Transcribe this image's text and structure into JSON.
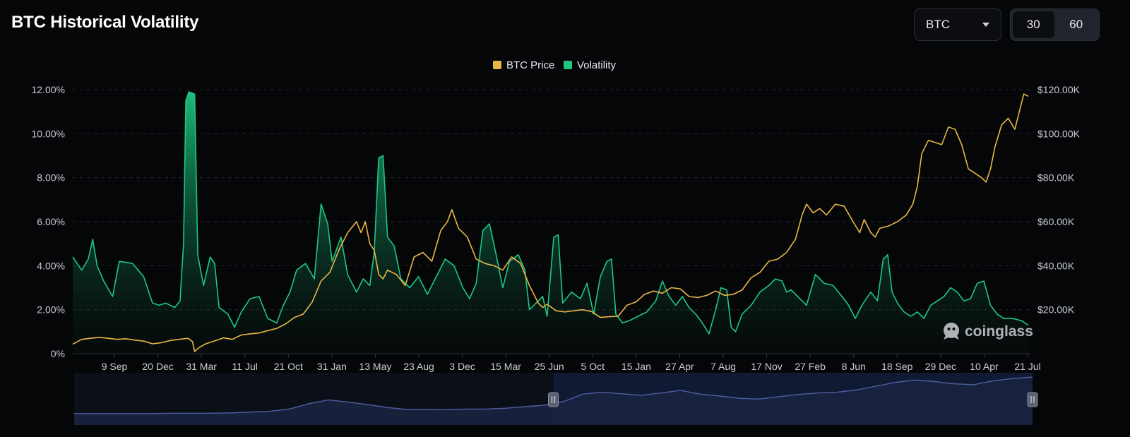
{
  "header": {
    "title": "BTC Historical Volatility"
  },
  "controls": {
    "symbol_select": {
      "value": "BTC",
      "icon": "chevron-down-icon"
    },
    "window_toggle": {
      "options": [
        "30",
        "60"
      ],
      "selected": "30"
    }
  },
  "watermark": {
    "text": "coinglass",
    "icon": "coinglass-logo-icon"
  },
  "colors": {
    "background": "#050608",
    "volatility": "#1fc783",
    "btc_price": "#e8b746",
    "navigator_line": "#4d5fa3",
    "navigator_fill": "#1a2340"
  },
  "chart_data": {
    "type": "line",
    "legend": {
      "position": "top-center",
      "entries": [
        "BTC Price",
        "Volatility"
      ]
    },
    "grid": true,
    "x_tick_labels": [
      "9 Sep",
      "20 Dec",
      "31 Mar",
      "11 Jul",
      "21 Oct",
      "31 Jan",
      "13 May",
      "23 Aug",
      "3 Dec",
      "15 Mar",
      "25 Jun",
      "5 Oct",
      "15 Jan",
      "27 Apr",
      "7 Aug",
      "17 Nov",
      "27 Feb",
      "8 Jun",
      "18 Sep",
      "29 Dec",
      "10 Apr",
      "21 Jul"
    ],
    "y_left": {
      "ticks": [
        "0%",
        "2.00%",
        "4.00%",
        "6.00%",
        "8.00%",
        "10.00%",
        "12.00%"
      ],
      "range": [
        0,
        12
      ]
    },
    "y_right": {
      "ticks": [
        "$20.00K",
        "$40.00K",
        "$60.00K",
        "$80.00K",
        "$100.00K",
        "$120.00K"
      ],
      "range": [
        0,
        120
      ]
    },
    "x_range": [
      0,
      21.6
    ],
    "series": [
      {
        "name": "Volatility",
        "axis": "left",
        "unit": "%",
        "points": [
          [
            0.0,
            4.4
          ],
          [
            0.2,
            3.8
          ],
          [
            0.35,
            4.3
          ],
          [
            0.45,
            5.2
          ],
          [
            0.55,
            4.0
          ],
          [
            0.7,
            3.3
          ],
          [
            0.9,
            2.6
          ],
          [
            1.05,
            4.2
          ],
          [
            1.35,
            4.1
          ],
          [
            1.6,
            3.5
          ],
          [
            1.8,
            2.3
          ],
          [
            1.95,
            2.2
          ],
          [
            2.1,
            2.3
          ],
          [
            2.3,
            2.1
          ],
          [
            2.42,
            2.4
          ],
          [
            2.5,
            5.0
          ],
          [
            2.55,
            11.5
          ],
          [
            2.62,
            11.9
          ],
          [
            2.75,
            11.8
          ],
          [
            2.82,
            4.5
          ],
          [
            2.95,
            3.1
          ],
          [
            3.1,
            4.4
          ],
          [
            3.2,
            4.1
          ],
          [
            3.3,
            2.1
          ],
          [
            3.5,
            1.8
          ],
          [
            3.65,
            1.2
          ],
          [
            3.8,
            1.9
          ],
          [
            4.0,
            2.5
          ],
          [
            4.2,
            2.6
          ],
          [
            4.4,
            1.6
          ],
          [
            4.6,
            1.4
          ],
          [
            4.75,
            2.2
          ],
          [
            4.9,
            2.8
          ],
          [
            5.05,
            3.8
          ],
          [
            5.25,
            4.1
          ],
          [
            5.45,
            3.4
          ],
          [
            5.6,
            6.8
          ],
          [
            5.75,
            5.9
          ],
          [
            5.85,
            4.2
          ],
          [
            6.05,
            5.3
          ],
          [
            6.2,
            3.6
          ],
          [
            6.4,
            2.8
          ],
          [
            6.55,
            3.4
          ],
          [
            6.7,
            3.1
          ],
          [
            6.8,
            4.6
          ],
          [
            6.9,
            8.9
          ],
          [
            7.0,
            9.0
          ],
          [
            7.1,
            5.3
          ],
          [
            7.25,
            4.9
          ],
          [
            7.4,
            3.4
          ],
          [
            7.6,
            3.0
          ],
          [
            7.8,
            3.5
          ],
          [
            8.0,
            2.7
          ],
          [
            8.2,
            3.5
          ],
          [
            8.4,
            4.3
          ],
          [
            8.6,
            4.0
          ],
          [
            8.8,
            3.0
          ],
          [
            8.95,
            2.5
          ],
          [
            9.1,
            3.2
          ],
          [
            9.25,
            5.6
          ],
          [
            9.4,
            5.9
          ],
          [
            9.55,
            4.5
          ],
          [
            9.7,
            3.0
          ],
          [
            9.85,
            4.2
          ],
          [
            10.05,
            4.5
          ],
          [
            10.2,
            3.8
          ],
          [
            10.3,
            2.0
          ],
          [
            10.45,
            2.3
          ],
          [
            10.6,
            2.6
          ],
          [
            10.7,
            1.7
          ],
          [
            10.85,
            5.3
          ],
          [
            10.95,
            5.4
          ],
          [
            11.05,
            2.3
          ],
          [
            11.25,
            2.8
          ],
          [
            11.45,
            2.5
          ],
          [
            11.6,
            3.2
          ],
          [
            11.75,
            1.8
          ],
          [
            11.9,
            3.5
          ],
          [
            12.05,
            4.2
          ],
          [
            12.15,
            4.3
          ],
          [
            12.25,
            1.8
          ],
          [
            12.4,
            1.4
          ],
          [
            12.55,
            1.5
          ],
          [
            12.75,
            1.7
          ],
          [
            12.95,
            1.9
          ],
          [
            13.15,
            2.4
          ],
          [
            13.3,
            3.3
          ],
          [
            13.45,
            2.6
          ],
          [
            13.6,
            2.2
          ],
          [
            13.75,
            2.6
          ],
          [
            13.9,
            2.1
          ],
          [
            14.05,
            1.8
          ],
          [
            14.2,
            1.4
          ],
          [
            14.35,
            0.9
          ],
          [
            14.5,
            2.0
          ],
          [
            14.62,
            3.0
          ],
          [
            14.75,
            2.9
          ],
          [
            14.85,
            1.2
          ],
          [
            14.95,
            1.0
          ],
          [
            15.1,
            1.8
          ],
          [
            15.3,
            2.2
          ],
          [
            15.5,
            2.8
          ],
          [
            15.7,
            3.1
          ],
          [
            15.85,
            3.4
          ],
          [
            16.0,
            3.3
          ],
          [
            16.1,
            2.8
          ],
          [
            16.2,
            2.9
          ],
          [
            16.35,
            2.6
          ],
          [
            16.55,
            2.2
          ],
          [
            16.75,
            3.6
          ],
          [
            16.95,
            3.2
          ],
          [
            17.15,
            3.1
          ],
          [
            17.35,
            2.6
          ],
          [
            17.5,
            2.2
          ],
          [
            17.65,
            1.6
          ],
          [
            17.8,
            2.2
          ],
          [
            18.0,
            2.8
          ],
          [
            18.15,
            2.4
          ],
          [
            18.28,
            4.3
          ],
          [
            18.38,
            4.5
          ],
          [
            18.48,
            2.8
          ],
          [
            18.6,
            2.3
          ],
          [
            18.75,
            1.9
          ],
          [
            18.9,
            1.7
          ],
          [
            19.05,
            1.9
          ],
          [
            19.2,
            1.6
          ],
          [
            19.35,
            2.2
          ],
          [
            19.5,
            2.4
          ],
          [
            19.65,
            2.6
          ],
          [
            19.8,
            3.0
          ],
          [
            19.95,
            2.8
          ],
          [
            20.1,
            2.4
          ],
          [
            20.25,
            2.5
          ],
          [
            20.4,
            3.2
          ],
          [
            20.55,
            3.3
          ],
          [
            20.7,
            2.2
          ],
          [
            20.85,
            1.8
          ],
          [
            21.0,
            1.6
          ],
          [
            21.2,
            1.6
          ],
          [
            21.4,
            1.5
          ],
          [
            21.55,
            1.3
          ]
        ]
      },
      {
        "name": "BTC Price",
        "axis": "right",
        "unit": "$K",
        "points": [
          [
            0.0,
            4.3
          ],
          [
            0.2,
            6.5
          ],
          [
            0.4,
            7.0
          ],
          [
            0.6,
            7.4
          ],
          [
            0.8,
            7.0
          ],
          [
            1.0,
            6.5
          ],
          [
            1.2,
            6.8
          ],
          [
            1.4,
            6.2
          ],
          [
            1.6,
            5.7
          ],
          [
            1.8,
            4.5
          ],
          [
            2.0,
            5.0
          ],
          [
            2.2,
            6.0
          ],
          [
            2.4,
            6.5
          ],
          [
            2.6,
            7.0
          ],
          [
            2.7,
            5.5
          ],
          [
            2.75,
            1.0
          ],
          [
            2.85,
            2.8
          ],
          [
            3.0,
            4.5
          ],
          [
            3.2,
            5.8
          ],
          [
            3.4,
            7.2
          ],
          [
            3.6,
            6.5
          ],
          [
            3.8,
            8.5
          ],
          [
            4.0,
            9.0
          ],
          [
            4.2,
            9.4
          ],
          [
            4.4,
            10.5
          ],
          [
            4.6,
            11.5
          ],
          [
            4.8,
            13.5
          ],
          [
            5.0,
            16.5
          ],
          [
            5.2,
            18.0
          ],
          [
            5.4,
            23.5
          ],
          [
            5.6,
            33.0
          ],
          [
            5.8,
            37.0
          ],
          [
            6.0,
            47.0
          ],
          [
            6.2,
            55.0
          ],
          [
            6.4,
            60.0
          ],
          [
            6.5,
            55.0
          ],
          [
            6.6,
            60.0
          ],
          [
            6.7,
            50.0
          ],
          [
            6.8,
            47.0
          ],
          [
            6.9,
            36.0
          ],
          [
            7.0,
            34.0
          ],
          [
            7.1,
            38.0
          ],
          [
            7.3,
            36.0
          ],
          [
            7.5,
            31.0
          ],
          [
            7.7,
            44.0
          ],
          [
            7.9,
            46.0
          ],
          [
            8.1,
            42.0
          ],
          [
            8.3,
            56.0
          ],
          [
            8.45,
            60.0
          ],
          [
            8.55,
            65.5
          ],
          [
            8.7,
            57.0
          ],
          [
            8.9,
            53.0
          ],
          [
            9.1,
            43.0
          ],
          [
            9.3,
            41.0
          ],
          [
            9.5,
            40.0
          ],
          [
            9.7,
            38.0
          ],
          [
            9.9,
            44.0
          ],
          [
            10.1,
            41.0
          ],
          [
            10.3,
            31.0
          ],
          [
            10.5,
            23.0
          ],
          [
            10.6,
            21.0
          ],
          [
            10.7,
            22.5
          ],
          [
            10.9,
            19.5
          ],
          [
            11.1,
            19.0
          ],
          [
            11.3,
            19.5
          ],
          [
            11.5,
            20.0
          ],
          [
            11.7,
            19.2
          ],
          [
            11.9,
            16.5
          ],
          [
            12.1,
            16.8
          ],
          [
            12.3,
            17.0
          ],
          [
            12.5,
            22.0
          ],
          [
            12.7,
            23.5
          ],
          [
            12.9,
            27.0
          ],
          [
            13.1,
            28.5
          ],
          [
            13.3,
            27.5
          ],
          [
            13.5,
            30.0
          ],
          [
            13.7,
            29.5
          ],
          [
            13.9,
            26.0
          ],
          [
            14.1,
            25.5
          ],
          [
            14.3,
            26.5
          ],
          [
            14.5,
            28.5
          ],
          [
            14.7,
            26.5
          ],
          [
            14.9,
            27.0
          ],
          [
            15.1,
            29.0
          ],
          [
            15.3,
            34.5
          ],
          [
            15.5,
            37.0
          ],
          [
            15.7,
            42.0
          ],
          [
            15.9,
            43.0
          ],
          [
            16.1,
            46.0
          ],
          [
            16.3,
            52.0
          ],
          [
            16.45,
            63.0
          ],
          [
            16.55,
            68.0
          ],
          [
            16.7,
            64.0
          ],
          [
            16.85,
            66.0
          ],
          [
            17.0,
            63.0
          ],
          [
            17.2,
            68.0
          ],
          [
            17.4,
            67.0
          ],
          [
            17.6,
            60.0
          ],
          [
            17.75,
            55.0
          ],
          [
            17.85,
            61.0
          ],
          [
            18.0,
            55.0
          ],
          [
            18.1,
            53.0
          ],
          [
            18.2,
            57.0
          ],
          [
            18.4,
            58.0
          ],
          [
            18.6,
            60.0
          ],
          [
            18.8,
            63.0
          ],
          [
            18.95,
            68.0
          ],
          [
            19.05,
            76.0
          ],
          [
            19.15,
            91.0
          ],
          [
            19.3,
            97.0
          ],
          [
            19.45,
            96.0
          ],
          [
            19.6,
            95.0
          ],
          [
            19.75,
            103.0
          ],
          [
            19.9,
            102.0
          ],
          [
            20.05,
            95.0
          ],
          [
            20.2,
            84.0
          ],
          [
            20.35,
            82.0
          ],
          [
            20.5,
            80.0
          ],
          [
            20.6,
            78.0
          ],
          [
            20.7,
            84.0
          ],
          [
            20.8,
            94.0
          ],
          [
            20.95,
            104.0
          ],
          [
            21.1,
            107.0
          ],
          [
            21.25,
            102.0
          ],
          [
            21.35,
            110.0
          ],
          [
            21.45,
            118.0
          ],
          [
            21.55,
            117.0
          ]
        ]
      }
    ],
    "navigator": {
      "type": "area",
      "selected_range": [
        0.5,
        1.0
      ],
      "values": [
        0.04,
        0.04,
        0.04,
        0.04,
        0.04,
        0.05,
        0.05,
        0.05,
        0.06,
        0.08,
        0.1,
        0.16,
        0.3,
        0.4,
        0.34,
        0.28,
        0.2,
        0.15,
        0.15,
        0.14,
        0.16,
        0.16,
        0.18,
        0.22,
        0.26,
        0.35,
        0.55,
        0.6,
        0.56,
        0.52,
        0.58,
        0.65,
        0.55,
        0.5,
        0.44,
        0.42,
        0.48,
        0.54,
        0.58,
        0.6,
        0.66,
        0.76,
        0.86,
        0.92,
        0.88,
        0.82,
        0.8,
        0.9,
        0.96,
        1.0
      ]
    }
  }
}
